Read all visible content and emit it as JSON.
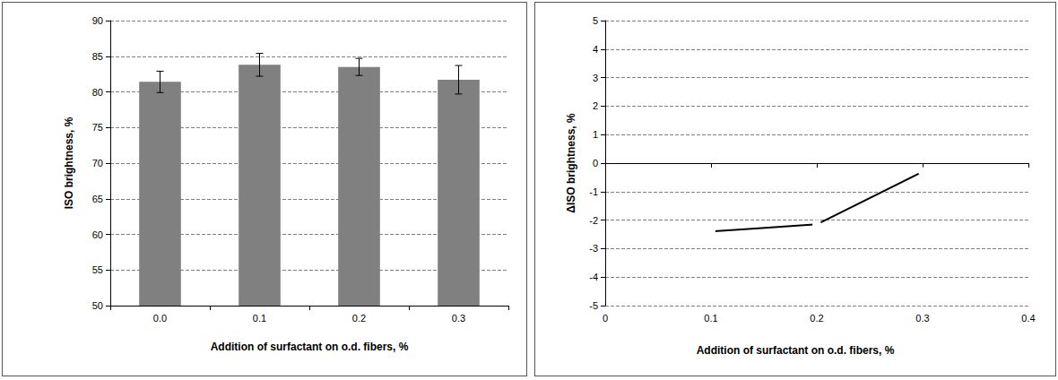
{
  "chart_data": [
    {
      "type": "bar",
      "categories": [
        "0.0",
        "0.1",
        "0.2",
        "0.3"
      ],
      "values": [
        81.4,
        83.8,
        83.5,
        81.7
      ],
      "errors": [
        1.5,
        1.6,
        1.2,
        2.0
      ],
      "color": "#808080",
      "xlabel": "Addition of surfactant on o.d. fibers, %",
      "ylabel": "ISO brightness, %",
      "ylim": [
        50,
        90
      ],
      "yticks": [
        50,
        55,
        60,
        65,
        70,
        75,
        80,
        85,
        90
      ],
      "grid": true
    },
    {
      "type": "line",
      "x": [
        0.1,
        0.2,
        0.3
      ],
      "values": [
        -2.4,
        -2.15,
        -0.3
      ],
      "color": "#000000",
      "marker": "circle",
      "xlabel": "Addition of surfactant on o.d. fibers, %",
      "ylabel": "ΔISO brightness, %",
      "xlim": [
        0,
        0.4
      ],
      "xticks": [
        0,
        0.1,
        0.2,
        0.3,
        0.4
      ],
      "ylim": [
        -5,
        5
      ],
      "yticks": [
        -5,
        -4,
        -3,
        -2,
        -1,
        0,
        1,
        2,
        3,
        4,
        5
      ],
      "grid": true
    }
  ]
}
